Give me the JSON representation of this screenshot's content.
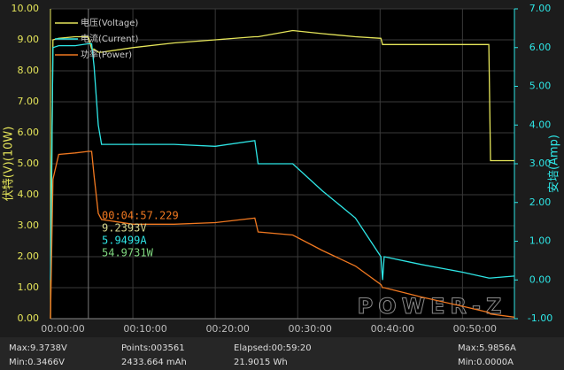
{
  "chart_data": {
    "type": "line",
    "legend": "top-left",
    "grid": true,
    "y_label": "伏特(V)(10W)",
    "y2_label": "安培(Amp)",
    "watermark": "POWER-Z",
    "annotations": [
      "00:04:57.229",
      "9.2393V",
      "5.9499A",
      "54.9731W"
    ],
    "x": [
      0,
      0.3,
      1,
      3,
      4.6,
      5,
      5.3,
      5.8,
      6.2,
      10,
      15,
      20,
      24.8,
      25.2,
      29.4,
      33,
      37,
      40.1,
      40.3,
      40.5,
      45,
      50,
      53.2,
      53.4,
      56.3
    ],
    "series": [
      {
        "name": "电压(Voltage)",
        "color": "#e6e65a",
        "values": [
          0,
          9.0,
          9.05,
          9.1,
          9.1,
          8.7,
          8.7,
          8.6,
          8.6,
          8.75,
          8.9,
          9.0,
          9.1,
          9.1,
          9.3,
          9.2,
          9.1,
          9.05,
          8.85,
          8.85,
          8.85,
          8.85,
          8.85,
          5.1,
          5.1
        ]
      },
      {
        "name": "电流(Current)",
        "color": "#2ee6e6",
        "axis": "y2",
        "values": [
          0,
          6.0,
          6.05,
          6.05,
          6.1,
          6.1,
          5.5,
          4.0,
          3.5,
          3.5,
          3.5,
          3.45,
          3.6,
          3.0,
          3.0,
          2.3,
          1.6,
          0.6,
          0.0,
          0.6,
          0.4,
          0.2,
          0.05,
          0.05,
          0.1
        ]
      },
      {
        "name": "功率(Power)",
        "color": "#f07820",
        "values": [
          0,
          4.5,
          5.3,
          5.35,
          5.4,
          5.4,
          4.6,
          3.4,
          3.2,
          3.05,
          3.05,
          3.1,
          3.25,
          2.8,
          2.7,
          2.2,
          1.7,
          1.1,
          1.0,
          1.0,
          0.7,
          0.4,
          0.2,
          0.15,
          0.05
        ]
      }
    ],
    "xlim": [
      0,
      56.3
    ],
    "xticks": [
      {
        "value": 0,
        "label": "00:00:00"
      },
      {
        "value": 10,
        "label": "00:10:00"
      },
      {
        "value": 20,
        "label": "00:20:00"
      },
      {
        "value": 30,
        "label": "00:30:00"
      },
      {
        "value": 40,
        "label": "00:40:00"
      },
      {
        "value": 50,
        "label": "00:50:00"
      }
    ],
    "ylim": [
      0,
      10
    ],
    "yticks": [
      {
        "value": 0,
        "label": "0.00"
      },
      {
        "value": 1,
        "label": "1.00"
      },
      {
        "value": 2,
        "label": "2.00"
      },
      {
        "value": 3,
        "label": "3.00"
      },
      {
        "value": 4,
        "label": "4.00"
      },
      {
        "value": 5,
        "label": "5.00"
      },
      {
        "value": 6,
        "label": "6.00"
      },
      {
        "value": 7,
        "label": "7.00"
      },
      {
        "value": 8,
        "label": "8.00"
      },
      {
        "value": 9,
        "label": "9.00"
      },
      {
        "value": 10,
        "label": "10.00"
      }
    ],
    "y2lim": [
      -1,
      7
    ],
    "y2ticks": [
      {
        "value": -1,
        "label": "-1.00"
      },
      {
        "value": 0,
        "label": "0.00"
      },
      {
        "value": 1,
        "label": "1.00"
      },
      {
        "value": 2,
        "label": "2.00"
      },
      {
        "value": 3,
        "label": "3.00"
      },
      {
        "value": 4,
        "label": "4.00"
      },
      {
        "value": 5,
        "label": "5.00"
      },
      {
        "value": 6,
        "label": "6.00"
      },
      {
        "value": 7,
        "label": "7.00"
      }
    ]
  },
  "footer": [
    [
      "Max:9.3738V",
      "Points:003561",
      "Elapsed:00:59:20",
      "Max:5.9856A"
    ],
    [
      "Min:0.3466V",
      "2433.664 mAh",
      "21.9015 Wh",
      "Min:0.0000A"
    ]
  ]
}
